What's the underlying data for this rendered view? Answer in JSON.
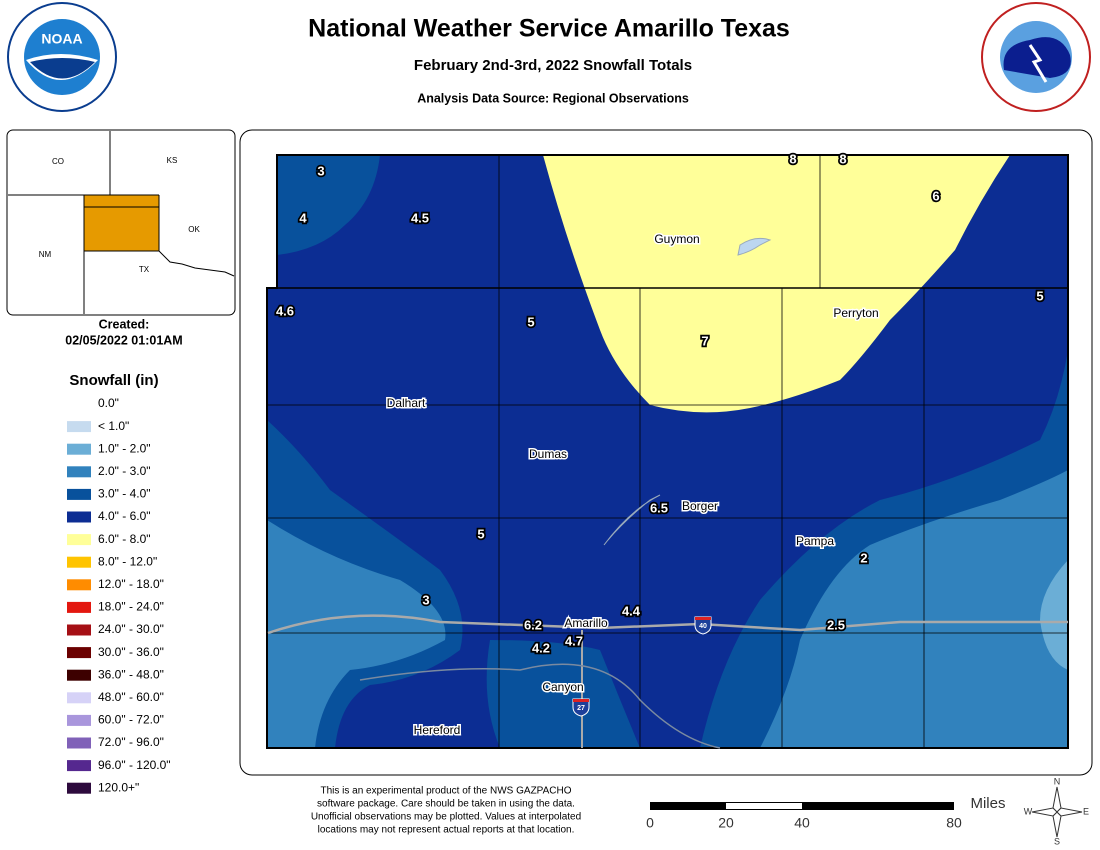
{
  "header": {
    "title": "National Weather Service Amarillo Texas",
    "subtitle": "February 2nd-3rd, 2022 Snowfall Totals",
    "source": "Analysis Data Source: Regional Observations"
  },
  "inset": {
    "states": [
      "CO",
      "KS",
      "NM",
      "OK",
      "TX"
    ]
  },
  "created": {
    "label": "Created:",
    "timestamp": "02/05/2022 01:01AM"
  },
  "legend": {
    "title": "Snowfall (in)",
    "items": [
      {
        "label": "0.0\"",
        "color": "#ffffff"
      },
      {
        "label": "< 1.0\"",
        "color": "#c6dbef"
      },
      {
        "label": "1.0\" - 2.0\"",
        "color": "#6baed6"
      },
      {
        "label": "2.0\" - 3.0\"",
        "color": "#3182bd"
      },
      {
        "label": "3.0\" - 4.0\"",
        "color": "#08519c"
      },
      {
        "label": "4.0\" - 6.0\"",
        "color": "#0c2d93"
      },
      {
        "label": "6.0\" - 8.0\"",
        "color": "#ffff99"
      },
      {
        "label": "8.0\" - 12.0\"",
        "color": "#ffc400"
      },
      {
        "label": "12.0\" - 18.0\"",
        "color": "#ff8c00"
      },
      {
        "label": "18.0\" - 24.0\"",
        "color": "#e3170f"
      },
      {
        "label": "24.0\" - 30.0\"",
        "color": "#a50f15"
      },
      {
        "label": "30.0\" - 36.0\"",
        "color": "#6b0000"
      },
      {
        "label": "36.0\" - 48.0\"",
        "color": "#3d0000"
      },
      {
        "label": "48.0\" - 60.0\"",
        "color": "#d6d2f7"
      },
      {
        "label": "60.0\" - 72.0\"",
        "color": "#a996dc"
      },
      {
        "label": "72.0\" - 96.0\"",
        "color": "#8061b8"
      },
      {
        "label": "96.0\" - 120.0\"",
        "color": "#55288f"
      },
      {
        "label": "120.0+\"",
        "color": "#2d0a3d"
      }
    ]
  },
  "map": {
    "cities": [
      "Guymon",
      "Perryton",
      "Dalhart",
      "Dumas",
      "Borger",
      "Pampa",
      "Amarillo",
      "Canyon",
      "Hereford"
    ],
    "observations": [
      "3",
      "4",
      "4.5",
      "8",
      "8",
      "6",
      "4.6",
      "5",
      "7",
      "5",
      "6.5",
      "5",
      "2",
      "3",
      "6.2",
      "4.4",
      "2.5",
      "4.2",
      "4.7"
    ],
    "highways": [
      "40",
      "27"
    ]
  },
  "footer": {
    "disclaimer": [
      "This is an experimental product of the NWS GAZPACHO",
      "software package. Care should be taken in using the data.",
      "Unofficial observations may be plotted. Values at interpolated",
      "locations may not represent actual reports at that location."
    ],
    "scale": {
      "unit": "Miles",
      "ticks": [
        "0",
        "20",
        "40",
        "80"
      ]
    },
    "compass": [
      "N",
      "S",
      "E",
      "W"
    ]
  }
}
